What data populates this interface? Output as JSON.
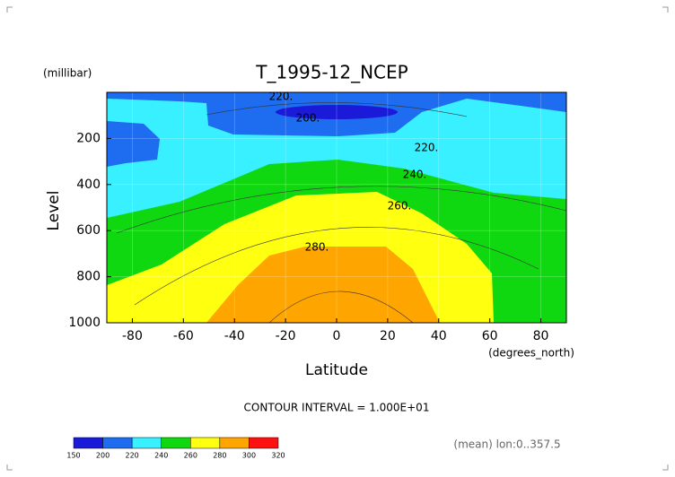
{
  "chart_data": {
    "type": "contour",
    "title": "T_1995-12_NCEP",
    "y_unit": "(millibar)",
    "ylabel": "Level",
    "xlabel": "Latitude",
    "x_unit": "(degrees_north)",
    "note": "CONTOUR INTERVAL = 1.000E+01",
    "footer": "(mean) lon:0..357.5",
    "xlim": [
      -90,
      90
    ],
    "xticks": [
      -80,
      -60,
      -40,
      -20,
      0,
      20,
      40,
      60,
      80
    ],
    "ylim": [
      1000,
      0
    ],
    "yticks": [
      200,
      400,
      600,
      800,
      1000
    ],
    "grid": true,
    "levels": [
      150,
      200,
      220,
      240,
      260,
      280,
      300,
      320
    ],
    "colors": [
      "#1a1ad8",
      "#1e6cf0",
      "#38f0ff",
      "#10d810",
      "#ffff10",
      "#ffa500",
      "#ff1010"
    ],
    "contour_labels": [
      {
        "value": 220,
        "label": "220."
      },
      {
        "value": 200,
        "label": "200."
      },
      {
        "value": 220,
        "label": "220."
      },
      {
        "value": 240,
        "label": "240."
      },
      {
        "value": 260,
        "label": "260."
      },
      {
        "value": 280,
        "label": "280."
      }
    ]
  }
}
